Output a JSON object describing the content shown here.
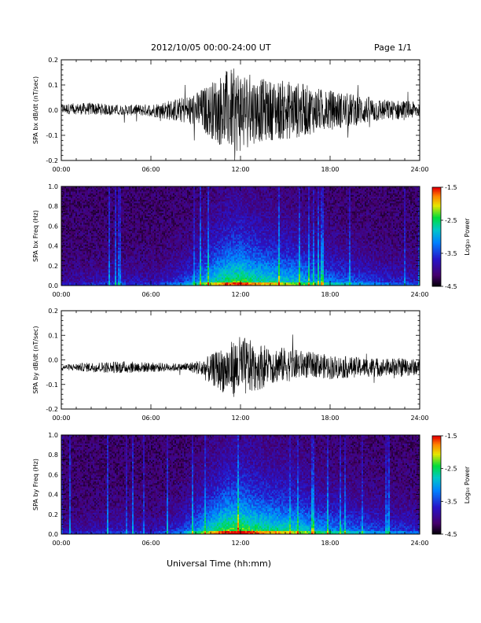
{
  "header": {
    "title": "2012/10/05   00:00-24:00 UT",
    "page": "Page 1/1"
  },
  "footer": {
    "xlabel": "Universal Time (hh:mm)"
  },
  "colorbar": {
    "label": "Log₁₀ Power",
    "ticks": [
      "-1.5",
      "-2.5",
      "-3.5",
      "-4.5"
    ]
  },
  "chart_data": [
    {
      "type": "line",
      "ylabel": "SPA bx dB/dt (nT/sec)",
      "xlim": [
        0,
        24
      ],
      "ylim": [
        -0.2,
        0.2
      ],
      "xticks": [
        "00:00",
        "06:00",
        "12:00",
        "18:00",
        "24:00"
      ],
      "yticks": [
        "0.2",
        "0.1",
        "0.0",
        "-0.1",
        "-0.2"
      ],
      "series": [
        {
          "x": [
            0,
            2,
            4,
            6,
            8,
            9,
            10,
            11,
            12,
            13,
            14,
            15,
            16,
            17,
            18,
            19,
            20,
            21,
            22,
            23,
            24
          ],
          "envelope": [
            0.02,
            0.025,
            0.02,
            0.025,
            0.05,
            0.07,
            0.11,
            0.16,
            0.17,
            0.13,
            0.12,
            0.12,
            0.11,
            0.09,
            0.08,
            0.07,
            0.06,
            0.05,
            0.04,
            0.04,
            0.03
          ],
          "offset": [
            0.005,
            0.005,
            0.0,
            0.0,
            0.0,
            0.0,
            0.0,
            0.0,
            0.0,
            0.0,
            0.0,
            0.0,
            0.0,
            0.0,
            0.0,
            0.0,
            0.0,
            0.0,
            0.0,
            0.0,
            0.0
          ]
        }
      ]
    },
    {
      "type": "heatmap",
      "ylabel": "SPA bx Freq (Hz)",
      "xlim": [
        0,
        24
      ],
      "ylim": [
        0.0,
        1.0
      ],
      "xticks": [
        "00:00",
        "06:00",
        "12:00",
        "18:00",
        "24:00"
      ],
      "yticks": [
        "1.0",
        "0.8",
        "0.6",
        "0.4",
        "0.2",
        "0.0"
      ],
      "color_scale": [
        -4.5,
        -1.5
      ],
      "activity": {
        "x": [
          0,
          2,
          4,
          6,
          8,
          9,
          10,
          11,
          12,
          13,
          14,
          15,
          16,
          17,
          18,
          19,
          20,
          21,
          22,
          23,
          24
        ],
        "level": [
          0.15,
          0.2,
          0.25,
          0.2,
          0.35,
          0.5,
          0.7,
          0.85,
          0.9,
          0.8,
          0.75,
          0.7,
          0.65,
          0.55,
          0.5,
          0.45,
          0.4,
          0.35,
          0.3,
          0.3,
          0.25
        ]
      }
    },
    {
      "type": "line",
      "ylabel": "SPA by dB/dt (nT/sec)",
      "xlim": [
        0,
        24
      ],
      "ylim": [
        -0.2,
        0.2
      ],
      "xticks": [
        "00:00",
        "06:00",
        "12:00",
        "18:00",
        "24:00"
      ],
      "yticks": [
        "0.2",
        "0.1",
        "0.0",
        "-0.1",
        "-0.2"
      ],
      "series": [
        {
          "x": [
            0,
            2,
            4,
            6,
            8,
            9,
            10,
            11,
            12,
            13,
            14,
            15,
            16,
            17,
            18,
            19,
            20,
            21,
            22,
            23,
            24
          ],
          "envelope": [
            0.01,
            0.02,
            0.025,
            0.02,
            0.015,
            0.025,
            0.06,
            0.1,
            0.13,
            0.1,
            0.08,
            0.07,
            0.06,
            0.05,
            0.05,
            0.045,
            0.04,
            0.04,
            0.035,
            0.04,
            0.03
          ],
          "offset": [
            -0.03,
            -0.03,
            -0.03,
            -0.03,
            -0.03,
            -0.03,
            -0.04,
            -0.04,
            -0.03,
            -0.03,
            -0.02,
            -0.02,
            -0.02,
            -0.02,
            -0.03,
            -0.03,
            -0.03,
            -0.03,
            -0.03,
            -0.03,
            -0.03
          ]
        }
      ]
    },
    {
      "type": "heatmap",
      "ylabel": "SPA by Freq (Hz)",
      "xlim": [
        0,
        24
      ],
      "ylim": [
        0.0,
        1.0
      ],
      "xticks": [
        "00:00",
        "06:00",
        "12:00",
        "18:00",
        "24:00"
      ],
      "yticks": [
        "1.0",
        "0.8",
        "0.6",
        "0.4",
        "0.2",
        "0.0"
      ],
      "color_scale": [
        -4.5,
        -1.5
      ],
      "activity": {
        "x": [
          0,
          2,
          4,
          6,
          8,
          9,
          10,
          11,
          12,
          13,
          14,
          15,
          16,
          17,
          18,
          19,
          20,
          21,
          22,
          23,
          24
        ],
        "level": [
          0.15,
          0.2,
          0.25,
          0.2,
          0.35,
          0.55,
          0.75,
          0.9,
          0.95,
          0.85,
          0.8,
          0.75,
          0.7,
          0.6,
          0.55,
          0.5,
          0.45,
          0.4,
          0.35,
          0.35,
          0.3
        ]
      }
    }
  ]
}
